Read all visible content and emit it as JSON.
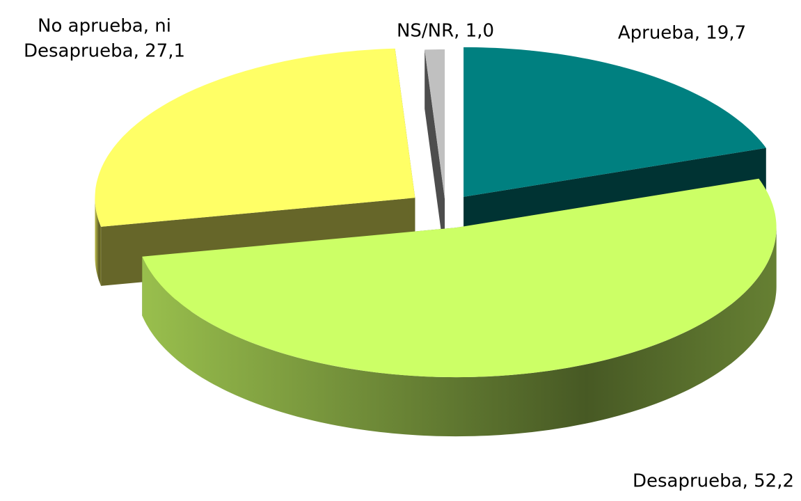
{
  "chart_data": {
    "type": "pie3d",
    "values": [
      19.7,
      52.2,
      27.1,
      1.0
    ],
    "value_labels": [
      [
        "Aprueba, 19,7"
      ],
      [
        "Desaprueba, 52,2"
      ],
      [
        "No aprueba, ni",
        "Desaprueba, 27,1"
      ],
      [
        "NS/NR, 1,0"
      ]
    ],
    "colors": [
      "#008080",
      "#ccff66",
      "#ffff66",
      "#c0c0c0"
    ]
  }
}
